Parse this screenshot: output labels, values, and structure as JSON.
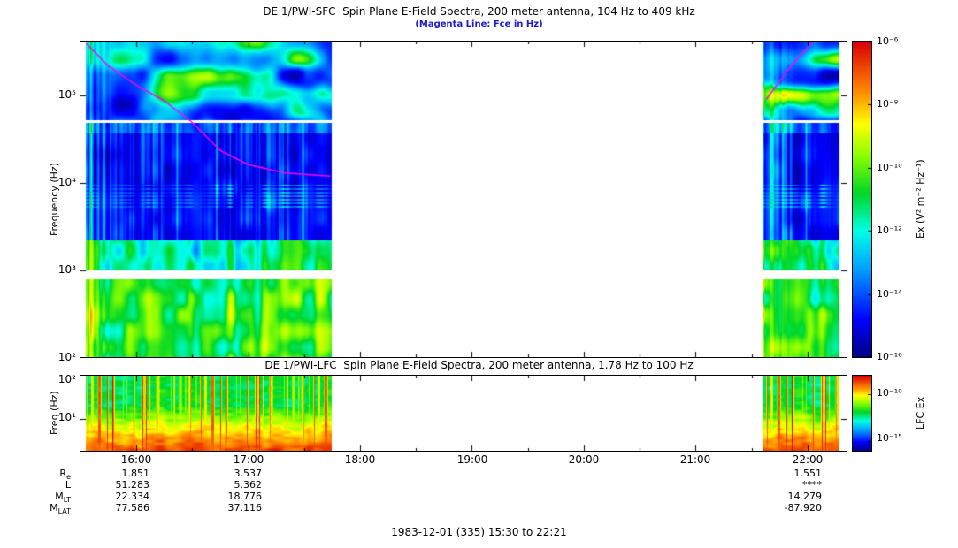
{
  "colors": {
    "subtitle": "#1a1acc",
    "axis": "#000000"
  },
  "chart_data": [
    {
      "type": "heatmap",
      "panel": "SFC",
      "title": "DE 1/PWI-SFC  Spin Plane E-Field Spectra, 200 meter antenna, 104 Hz to 409 kHz",
      "subtitle": "(Magenta Line: Fce in Hz)",
      "ylabel": "Frequency (Hz)",
      "y_axis": {
        "scale": "log",
        "min_hz": 104,
        "max_hz": 409000,
        "tick_labels": [
          "10⁵",
          "10⁴",
          "10³",
          "10²"
        ]
      },
      "x_axis": {
        "start": "15:30",
        "end": "22:21",
        "tick_labels": [
          "16:00",
          "17:00",
          "18:00",
          "19:00",
          "20:00",
          "21:00",
          "22:00"
        ]
      },
      "colorbar": {
        "label": "Ex (V² m⁻² Hz⁻¹)",
        "tick_labels": [
          "10⁻⁶",
          "10⁻⁸",
          "10⁻¹⁰",
          "10⁻¹²",
          "10⁻¹⁴",
          "10⁻¹⁶"
        ],
        "min_exp": -16,
        "max_exp": -6
      },
      "data_coverage": [
        {
          "start": "15:33",
          "end": "17:45"
        },
        {
          "start": "21:36",
          "end": "22:17"
        }
      ],
      "overlay": {
        "name": "Fce",
        "color": "#ff00ff"
      },
      "fce_line_points": [
        [
          {
            "t": "15:33",
            "hz": 390000
          },
          {
            "t": "15:45",
            "hz": 215000
          },
          {
            "t": "16:00",
            "hz": 130000
          },
          {
            "t": "16:15",
            "hz": 86000
          },
          {
            "t": "16:30",
            "hz": 49000
          },
          {
            "t": "16:45",
            "hz": 23500
          },
          {
            "t": "17:00",
            "hz": 16200
          },
          {
            "t": "17:20",
            "hz": 13000
          },
          {
            "t": "17:44",
            "hz": 12000
          }
        ],
        [
          {
            "t": "21:38",
            "hz": 90000
          },
          {
            "t": "21:50",
            "hz": 200000
          },
          {
            "t": "22:00",
            "hz": 350000
          },
          {
            "t": "22:03",
            "hz": 409000
          }
        ]
      ]
    },
    {
      "type": "heatmap",
      "panel": "LFC",
      "title": "DE 1/PWI-LFC  Spin Plane E-Field Spectra, 200 meter antenna, 1.78 Hz to 100 Hz",
      "ylabel": "Freq (Hz)",
      "y_axis": {
        "scale": "log",
        "min_hz": 1.78,
        "max_hz": 100,
        "tick_labels": [
          "10²",
          "10¹"
        ]
      },
      "colorbar": {
        "label": "LFC Ex",
        "tick_labels": [
          "10⁻¹⁰",
          "10⁻¹⁵"
        ]
      }
    },
    {
      "type": "table",
      "panel": "ephemeris",
      "row_labels": [
        {
          "main": "R",
          "sub": "e"
        },
        {
          "main": "L",
          "sub": ""
        },
        {
          "main": "M",
          "sub": "LT"
        },
        {
          "main": "M",
          "sub": "LAT"
        }
      ],
      "columns_under": [
        "16:00",
        "17:00",
        "22:00"
      ],
      "rows": [
        [
          "1.851",
          "3.537",
          "1.551"
        ],
        [
          "51.283",
          "5.362",
          "****"
        ],
        [
          "22.334",
          "18.776",
          "14.279"
        ],
        [
          "77.586",
          "37.116",
          "-87.920"
        ]
      ],
      "caption": "1983-12-01 (335) 15:30 to 22:21"
    }
  ]
}
